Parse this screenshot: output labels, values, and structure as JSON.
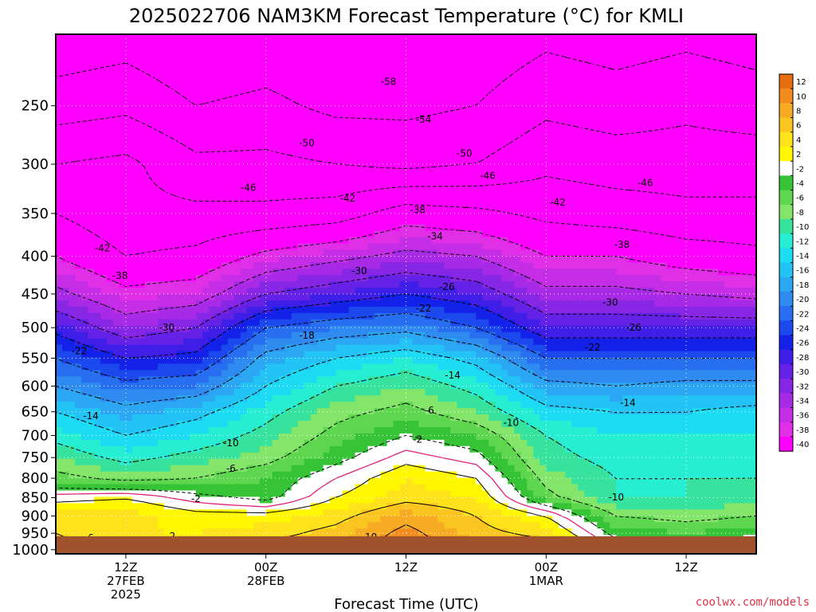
{
  "title": "2025022706 NAM3KM Forecast Temperature (°C) for KMLI",
  "credit": "coolwx.com/models",
  "chart_data": {
    "type": "heatmap",
    "title": "2025022706 NAM3KM Forecast Temperature (°C) for KMLI",
    "xlabel": "Forecast Time (UTC)",
    "ylabel": "",
    "y_unit": "hPa",
    "x_unit": "forecast hour",
    "xlim": [
      0,
      60
    ],
    "ylim": [
      1013,
      200
    ],
    "y_ticks": [
      250,
      300,
      350,
      400,
      450,
      500,
      550,
      600,
      650,
      700,
      750,
      800,
      850,
      900,
      950,
      1000
    ],
    "x_ticks": [
      {
        "hour": 6,
        "label": [
          "12Z",
          "27FEB",
          "2025"
        ]
      },
      {
        "hour": 18,
        "label": [
          "00Z",
          "28FEB"
        ]
      },
      {
        "hour": 30,
        "label": [
          "12Z"
        ]
      },
      {
        "hour": 42,
        "label": [
          "00Z",
          "1MAR"
        ]
      },
      {
        "hour": 54,
        "label": [
          "12Z"
        ]
      }
    ],
    "grid": true,
    "colorbar": {
      "levels": [
        12,
        10,
        8,
        6,
        4,
        2,
        -2,
        -4,
        -6,
        -8,
        -10,
        -12,
        -14,
        -16,
        -18,
        -20,
        -22,
        -24,
        -26,
        -28,
        -30,
        -32,
        -34,
        -36,
        -38,
        -40
      ],
      "colors": [
        "#e66d10",
        "#f28c1e",
        "#f7ab23",
        "#fbc521",
        "#fee21c",
        "#fff800",
        "#ffffff",
        "#36c436",
        "#5fd64f",
        "#84e56b",
        "#36e29c",
        "#27eed2",
        "#1cdbf2",
        "#23c3f5",
        "#2ca7f3",
        "#2f8bf0",
        "#276ff0",
        "#1c49ee",
        "#1421e9",
        "#3f1ee8",
        "#6521e6",
        "#8726e5",
        "#a82ae6",
        "#c52de6",
        "#e02fe6",
        "#ff00ff"
      ],
      "above_color": "#e66d10",
      "below_color": "#ff00ff"
    },
    "levels": [
      200,
      250,
      300,
      350,
      400,
      450,
      500,
      550,
      600,
      650,
      700,
      750,
      800,
      850,
      900,
      950,
      1000
    ],
    "hours": [
      0,
      6,
      12,
      18,
      24,
      30,
      36,
      42,
      48,
      54,
      60
    ],
    "temperature_c": [
      [
        -57,
        -56,
        -58,
        -57,
        -58,
        -58,
        -57,
        -55,
        -56,
        -55,
        -56
      ],
      [
        -52,
        -51,
        -54,
        -53,
        -55,
        -55,
        -54,
        -51,
        -52,
        -51,
        -52
      ],
      [
        -46,
        -45,
        -49,
        -49,
        -50,
        -51,
        -50,
        -47,
        -48,
        -48,
        -48
      ],
      [
        -42,
        -45,
        -45,
        -45,
        -44,
        -40,
        -41,
        -43,
        -44,
        -45,
        -45
      ],
      [
        -38,
        -42,
        -41,
        -37,
        -35,
        -33,
        -34,
        -38,
        -38,
        -40,
        -41
      ],
      [
        -33,
        -37,
        -36,
        -30,
        -28,
        -26,
        -28,
        -33,
        -33,
        -34,
        -35
      ],
      [
        -27,
        -32,
        -30,
        -22,
        -20,
        -19,
        -22,
        -28,
        -28,
        -28,
        -28
      ],
      [
        -22,
        -26,
        -25,
        -17,
        -14,
        -12,
        -15,
        -22,
        -22,
        -22,
        -22
      ],
      [
        -18,
        -21,
        -20,
        -14,
        -10,
        -8,
        -11,
        -17,
        -18,
        -17,
        -17
      ],
      [
        -14,
        -17,
        -15,
        -11,
        -7,
        -5,
        -8,
        -13,
        -14,
        -14,
        -13
      ],
      [
        -11,
        -14,
        -12,
        -9,
        -5,
        -2,
        -4,
        -10,
        -12,
        -12,
        -12
      ],
      [
        -8,
        -11,
        -9,
        -7,
        -3,
        1,
        -1,
        -9,
        -11,
        -11,
        -11
      ],
      [
        -5,
        -7,
        -6,
        -4,
        0,
        4,
        2,
        -7,
        -10,
        -10,
        -10
      ],
      [
        1,
        2,
        -1,
        -3,
        2,
        5,
        4,
        -5,
        -10,
        -10,
        -9
      ],
      [
        5,
        5,
        3,
        3,
        5,
        9,
        6,
        2,
        -6,
        -7,
        -6
      ],
      [
        6,
        4,
        4,
        5,
        7,
        11,
        7,
        5,
        -3,
        -4,
        -3
      ],
      [
        7,
        6,
        6,
        7,
        8,
        12,
        9,
        8,
        0,
        0,
        1
      ]
    ],
    "contour_interval_c": 4,
    "freezing_line_color": "#e0217a",
    "contour_labels": [
      {
        "value": -58,
        "hour": 28.5,
        "p": 232
      },
      {
        "value": -54,
        "hour": 31.5,
        "p": 261
      },
      {
        "value": -50,
        "hour": 21.5,
        "p": 281
      },
      {
        "value": -50,
        "hour": 35,
        "p": 290
      },
      {
        "value": -46,
        "hour": 16.5,
        "p": 323
      },
      {
        "value": -46,
        "hour": 37,
        "p": 311
      },
      {
        "value": -46,
        "hour": 50.5,
        "p": 318
      },
      {
        "value": -42,
        "hour": 25,
        "p": 334
      },
      {
        "value": -42,
        "hour": 43,
        "p": 338
      },
      {
        "value": -42,
        "hour": 4,
        "p": 390
      },
      {
        "value": -38,
        "hour": 31,
        "p": 346
      },
      {
        "value": -38,
        "hour": 48.5,
        "p": 386
      },
      {
        "value": -38,
        "hour": 5.5,
        "p": 425
      },
      {
        "value": -34,
        "hour": 32.5,
        "p": 376
      },
      {
        "value": -30,
        "hour": 26,
        "p": 419
      },
      {
        "value": -30,
        "hour": 47.5,
        "p": 462
      },
      {
        "value": -30,
        "hour": 9.5,
        "p": 500
      },
      {
        "value": -26,
        "hour": 33.5,
        "p": 440
      },
      {
        "value": -26,
        "hour": 49.5,
        "p": 500
      },
      {
        "value": -22,
        "hour": 31.5,
        "p": 471
      },
      {
        "value": -22,
        "hour": 46,
        "p": 532
      },
      {
        "value": -22,
        "hour": 2,
        "p": 538
      },
      {
        "value": -18,
        "hour": 21.5,
        "p": 512
      },
      {
        "value": -14,
        "hour": 34,
        "p": 580
      },
      {
        "value": -14,
        "hour": 49,
        "p": 632
      },
      {
        "value": -14,
        "hour": 3,
        "p": 659
      },
      {
        "value": -10,
        "hour": 39,
        "p": 673
      },
      {
        "value": -10,
        "hour": 48,
        "p": 849
      },
      {
        "value": -10,
        "hour": 15,
        "p": 717
      },
      {
        "value": -6,
        "hour": 32,
        "p": 647
      },
      {
        "value": -6,
        "hour": 15,
        "p": 776
      },
      {
        "value": -2,
        "hour": 31,
        "p": 709
      },
      {
        "value": -2,
        "hour": 12,
        "p": 853
      },
      {
        "value": 2,
        "hour": 10,
        "p": 959
      },
      {
        "value": 6,
        "hour": 3,
        "p": 964
      },
      {
        "value": 6,
        "hour": 22,
        "p": 983
      },
      {
        "value": 10,
        "hour": 27,
        "p": 962
      }
    ]
  }
}
